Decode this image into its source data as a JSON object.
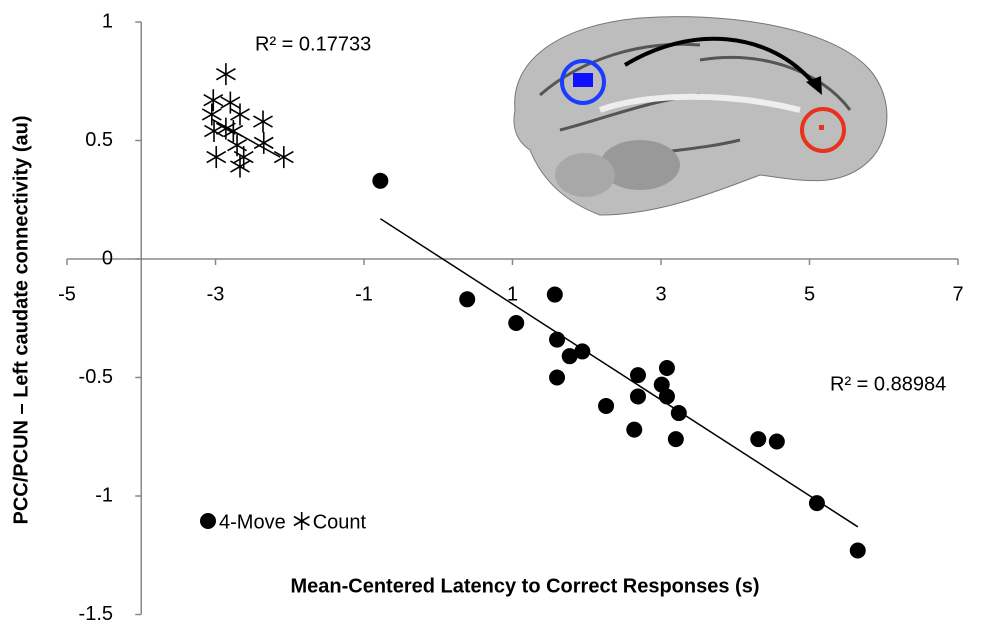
{
  "chart_data": {
    "type": "scatter",
    "x_label": "Mean-Centered Latency to Correct Responses (s)",
    "y_label": "PCC/PCUN – Left caudate connectivity (au)",
    "xlim": [
      -5,
      7
    ],
    "xticks": [
      -5,
      -3,
      -1,
      1,
      3,
      5,
      7
    ],
    "ylim": [
      -1.5,
      1
    ],
    "yticks": [
      -1.5,
      -1,
      -0.5,
      0,
      0.5,
      1
    ],
    "y_axis_crosses_x": -4,
    "legend": "bottom-left",
    "series": [
      {
        "name": "4-Move",
        "color": "#000000",
        "marker": "circle",
        "x": [
          -0.78,
          0.39,
          1.05,
          1.57,
          1.6,
          1.77,
          1.94,
          1.6,
          2.26,
          2.69,
          2.69,
          3.01,
          3.08,
          3.08,
          2.64,
          3.24,
          3.2,
          4.31,
          4.56,
          5.1,
          5.65
        ],
        "values": [
          0.33,
          -0.17,
          -0.27,
          -0.15,
          -0.34,
          -0.41,
          -0.39,
          -0.5,
          -0.62,
          -0.49,
          -0.58,
          -0.53,
          -0.58,
          -0.46,
          -0.72,
          -0.65,
          -0.76,
          -0.76,
          -0.77,
          -1.03,
          -1.23
        ],
        "trendline": {
          "x": [
            -0.78,
            5.65
          ],
          "values": [
            0.17,
            -1.13
          ],
          "label": "R² = 0.88984"
        }
      },
      {
        "name": "Count",
        "color": "#000000",
        "marker": "asterisk",
        "x": [
          -2.86,
          -3.03,
          -2.8,
          -3.05,
          -2.67,
          -2.86,
          -3.02,
          -2.36,
          -2.71,
          -2.35,
          -2.99,
          -2.62,
          -2.67,
          -2.08,
          -2.76
        ],
        "values": [
          0.78,
          0.67,
          0.66,
          0.61,
          0.61,
          0.55,
          0.54,
          0.58,
          0.48,
          0.49,
          0.43,
          0.43,
          0.39,
          0.43,
          0.54
        ],
        "trendline": {
          "x": [
            -3.05,
            -2.13
          ],
          "values": [
            0.59,
            0.43
          ],
          "label": "R² = 0.17733"
        }
      }
    ]
  }
}
